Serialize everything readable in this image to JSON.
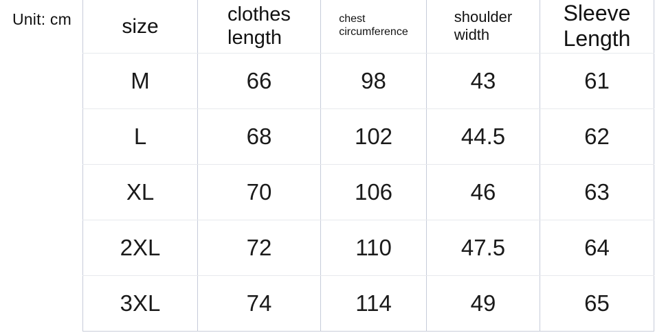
{
  "unit_label": "Unit: cm",
  "table": {
    "headers": [
      {
        "label": "size"
      },
      {
        "label": "clothes\nlength"
      },
      {
        "label": "chest\ncircumference"
      },
      {
        "label": "shoulder\nwidth"
      },
      {
        "label": "Sleeve\nLength"
      }
    ],
    "rows": [
      [
        "M",
        "66",
        "98",
        "43",
        "61"
      ],
      [
        "L",
        "68",
        "102",
        "44.5",
        "62"
      ],
      [
        "XL",
        "70",
        "106",
        "46",
        "63"
      ],
      [
        "2XL",
        "72",
        "110",
        "47.5",
        "64"
      ],
      [
        "3XL",
        "74",
        "114",
        "49",
        "65"
      ]
    ]
  },
  "chart_data": {
    "type": "table",
    "unit": "cm",
    "columns": [
      "size",
      "clothes length",
      "chest circumference",
      "shoulder width",
      "Sleeve Length"
    ],
    "rows": [
      [
        "M",
        66,
        98,
        43,
        61
      ],
      [
        "L",
        68,
        102,
        44.5,
        62
      ],
      [
        "XL",
        70,
        106,
        46,
        63
      ],
      [
        "2XL",
        72,
        110,
        47.5,
        64
      ],
      [
        "3XL",
        74,
        114,
        49,
        65
      ]
    ]
  },
  "colors": {
    "grid_vertical": "#c6cbd9",
    "grid_horizontal": "#e7e9ed",
    "text": "#161616",
    "background": "#ffffff"
  }
}
